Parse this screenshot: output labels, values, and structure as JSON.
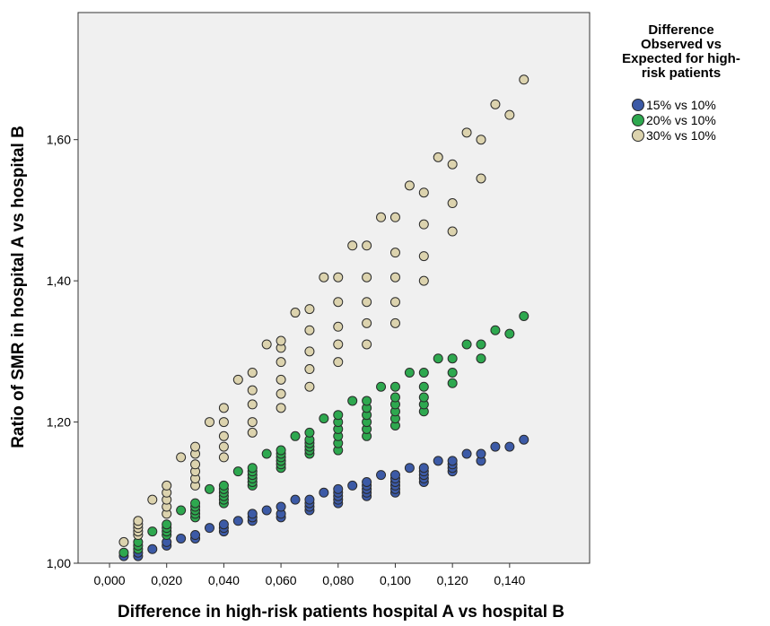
{
  "chart_data": {
    "type": "scatter",
    "title": "",
    "xlabel": "Difference in high-risk patients hospital A vs hospital B",
    "ylabel": "Ratio of SMR in hospital A vs hospital B",
    "xlim": [
      -0.011,
      0.168
    ],
    "ylim": [
      1.0,
      1.78
    ],
    "xticks": [
      0.0,
      0.02,
      0.04,
      0.06,
      0.08,
      0.1,
      0.12,
      0.14
    ],
    "xtick_labels": [
      "0,000",
      "0,020",
      "0,040",
      "0,060",
      "0,080",
      "0,100",
      "0,120",
      "0,140"
    ],
    "yticks": [
      1.0,
      1.2,
      1.4,
      1.6
    ],
    "ytick_labels": [
      "1,00",
      "1,20",
      "1,40",
      "1,60"
    ],
    "grid": false,
    "legend": {
      "title": [
        "Difference",
        "Observed vs",
        "Expected for high-",
        "risk patients"
      ],
      "placement": "right"
    },
    "series": [
      {
        "name": "15% vs 10%",
        "color": "#3c5aa6",
        "points": [
          [
            0.005,
            1.01
          ],
          [
            0.01,
            1.01
          ],
          [
            0.01,
            1.015
          ],
          [
            0.015,
            1.02
          ],
          [
            0.02,
            1.025
          ],
          [
            0.02,
            1.03
          ],
          [
            0.025,
            1.035
          ],
          [
            0.03,
            1.035
          ],
          [
            0.03,
            1.04
          ],
          [
            0.035,
            1.05
          ],
          [
            0.04,
            1.045
          ],
          [
            0.04,
            1.05
          ],
          [
            0.04,
            1.055
          ],
          [
            0.045,
            1.06
          ],
          [
            0.05,
            1.06
          ],
          [
            0.05,
            1.065
          ],
          [
            0.05,
            1.07
          ],
          [
            0.055,
            1.075
          ],
          [
            0.06,
            1.065
          ],
          [
            0.06,
            1.07
          ],
          [
            0.06,
            1.08
          ],
          [
            0.065,
            1.09
          ],
          [
            0.07,
            1.075
          ],
          [
            0.07,
            1.08
          ],
          [
            0.07,
            1.085
          ],
          [
            0.07,
            1.09
          ],
          [
            0.075,
            1.1
          ],
          [
            0.08,
            1.085
          ],
          [
            0.08,
            1.09
          ],
          [
            0.08,
            1.095
          ],
          [
            0.08,
            1.1
          ],
          [
            0.08,
            1.105
          ],
          [
            0.085,
            1.11
          ],
          [
            0.09,
            1.095
          ],
          [
            0.09,
            1.1
          ],
          [
            0.09,
            1.105
          ],
          [
            0.09,
            1.11
          ],
          [
            0.09,
            1.115
          ],
          [
            0.095,
            1.125
          ],
          [
            0.1,
            1.1
          ],
          [
            0.1,
            1.105
          ],
          [
            0.1,
            1.11
          ],
          [
            0.1,
            1.115
          ],
          [
            0.1,
            1.12
          ],
          [
            0.1,
            1.125
          ],
          [
            0.105,
            1.135
          ],
          [
            0.11,
            1.115
          ],
          [
            0.11,
            1.12
          ],
          [
            0.11,
            1.125
          ],
          [
            0.11,
            1.13
          ],
          [
            0.11,
            1.135
          ],
          [
            0.115,
            1.145
          ],
          [
            0.12,
            1.13
          ],
          [
            0.12,
            1.135
          ],
          [
            0.12,
            1.14
          ],
          [
            0.12,
            1.145
          ],
          [
            0.125,
            1.155
          ],
          [
            0.13,
            1.145
          ],
          [
            0.13,
            1.155
          ],
          [
            0.135,
            1.165
          ],
          [
            0.14,
            1.165
          ],
          [
            0.145,
            1.175
          ]
        ]
      },
      {
        "name": "20% vs 10%",
        "color": "#2ea84f",
        "points": [
          [
            0.005,
            1.015
          ],
          [
            0.01,
            1.02
          ],
          [
            0.01,
            1.025
          ],
          [
            0.01,
            1.03
          ],
          [
            0.015,
            1.045
          ],
          [
            0.02,
            1.04
          ],
          [
            0.02,
            1.045
          ],
          [
            0.02,
            1.05
          ],
          [
            0.02,
            1.055
          ],
          [
            0.025,
            1.075
          ],
          [
            0.03,
            1.065
          ],
          [
            0.03,
            1.07
          ],
          [
            0.03,
            1.075
          ],
          [
            0.03,
            1.08
          ],
          [
            0.03,
            1.085
          ],
          [
            0.035,
            1.105
          ],
          [
            0.04,
            1.085
          ],
          [
            0.04,
            1.09
          ],
          [
            0.04,
            1.095
          ],
          [
            0.04,
            1.1
          ],
          [
            0.04,
            1.105
          ],
          [
            0.04,
            1.11
          ],
          [
            0.045,
            1.13
          ],
          [
            0.05,
            1.11
          ],
          [
            0.05,
            1.115
          ],
          [
            0.05,
            1.12
          ],
          [
            0.05,
            1.125
          ],
          [
            0.05,
            1.13
          ],
          [
            0.05,
            1.135
          ],
          [
            0.055,
            1.155
          ],
          [
            0.06,
            1.135
          ],
          [
            0.06,
            1.14
          ],
          [
            0.06,
            1.145
          ],
          [
            0.06,
            1.15
          ],
          [
            0.06,
            1.155
          ],
          [
            0.06,
            1.16
          ],
          [
            0.065,
            1.18
          ],
          [
            0.07,
            1.155
          ],
          [
            0.07,
            1.16
          ],
          [
            0.07,
            1.165
          ],
          [
            0.07,
            1.17
          ],
          [
            0.07,
            1.175
          ],
          [
            0.07,
            1.185
          ],
          [
            0.075,
            1.205
          ],
          [
            0.08,
            1.16
          ],
          [
            0.08,
            1.17
          ],
          [
            0.08,
            1.18
          ],
          [
            0.08,
            1.19
          ],
          [
            0.08,
            1.2
          ],
          [
            0.08,
            1.21
          ],
          [
            0.085,
            1.23
          ],
          [
            0.09,
            1.18
          ],
          [
            0.09,
            1.19
          ],
          [
            0.09,
            1.2
          ],
          [
            0.09,
            1.21
          ],
          [
            0.09,
            1.22
          ],
          [
            0.09,
            1.23
          ],
          [
            0.095,
            1.25
          ],
          [
            0.1,
            1.195
          ],
          [
            0.1,
            1.205
          ],
          [
            0.1,
            1.215
          ],
          [
            0.1,
            1.225
          ],
          [
            0.1,
            1.235
          ],
          [
            0.1,
            1.25
          ],
          [
            0.105,
            1.27
          ],
          [
            0.11,
            1.215
          ],
          [
            0.11,
            1.225
          ],
          [
            0.11,
            1.235
          ],
          [
            0.11,
            1.25
          ],
          [
            0.11,
            1.27
          ],
          [
            0.115,
            1.29
          ],
          [
            0.12,
            1.255
          ],
          [
            0.12,
            1.27
          ],
          [
            0.12,
            1.29
          ],
          [
            0.125,
            1.31
          ],
          [
            0.13,
            1.29
          ],
          [
            0.13,
            1.31
          ],
          [
            0.135,
            1.33
          ],
          [
            0.14,
            1.325
          ],
          [
            0.145,
            1.35
          ]
        ]
      },
      {
        "name": "30% vs 10%",
        "color": "#dcd3ae",
        "points": [
          [
            0.005,
            1.03
          ],
          [
            0.01,
            1.04
          ],
          [
            0.01,
            1.045
          ],
          [
            0.01,
            1.05
          ],
          [
            0.01,
            1.055
          ],
          [
            0.01,
            1.06
          ],
          [
            0.015,
            1.09
          ],
          [
            0.02,
            1.07
          ],
          [
            0.02,
            1.08
          ],
          [
            0.02,
            1.09
          ],
          [
            0.02,
            1.1
          ],
          [
            0.02,
            1.11
          ],
          [
            0.025,
            1.15
          ],
          [
            0.03,
            1.11
          ],
          [
            0.03,
            1.12
          ],
          [
            0.03,
            1.13
          ],
          [
            0.03,
            1.14
          ],
          [
            0.03,
            1.155
          ],
          [
            0.03,
            1.165
          ],
          [
            0.035,
            1.2
          ],
          [
            0.04,
            1.15
          ],
          [
            0.04,
            1.165
          ],
          [
            0.04,
            1.18
          ],
          [
            0.04,
            1.2
          ],
          [
            0.04,
            1.22
          ],
          [
            0.045,
            1.26
          ],
          [
            0.05,
            1.185
          ],
          [
            0.05,
            1.2
          ],
          [
            0.05,
            1.225
          ],
          [
            0.05,
            1.245
          ],
          [
            0.05,
            1.27
          ],
          [
            0.055,
            1.31
          ],
          [
            0.06,
            1.22
          ],
          [
            0.06,
            1.24
          ],
          [
            0.06,
            1.26
          ],
          [
            0.06,
            1.285
          ],
          [
            0.06,
            1.305
          ],
          [
            0.06,
            1.315
          ],
          [
            0.065,
            1.355
          ],
          [
            0.07,
            1.25
          ],
          [
            0.07,
            1.275
          ],
          [
            0.07,
            1.3
          ],
          [
            0.07,
            1.33
          ],
          [
            0.07,
            1.36
          ],
          [
            0.075,
            1.405
          ],
          [
            0.08,
            1.285
          ],
          [
            0.08,
            1.31
          ],
          [
            0.08,
            1.335
          ],
          [
            0.08,
            1.37
          ],
          [
            0.08,
            1.405
          ],
          [
            0.085,
            1.45
          ],
          [
            0.09,
            1.31
          ],
          [
            0.09,
            1.34
          ],
          [
            0.09,
            1.37
          ],
          [
            0.09,
            1.405
          ],
          [
            0.09,
            1.45
          ],
          [
            0.095,
            1.49
          ],
          [
            0.1,
            1.34
          ],
          [
            0.1,
            1.37
          ],
          [
            0.1,
            1.405
          ],
          [
            0.1,
            1.44
          ],
          [
            0.1,
            1.49
          ],
          [
            0.105,
            1.535
          ],
          [
            0.11,
            1.4
          ],
          [
            0.11,
            1.435
          ],
          [
            0.11,
            1.48
          ],
          [
            0.11,
            1.525
          ],
          [
            0.115,
            1.575
          ],
          [
            0.12,
            1.47
          ],
          [
            0.12,
            1.51
          ],
          [
            0.12,
            1.565
          ],
          [
            0.125,
            1.61
          ],
          [
            0.13,
            1.545
          ],
          [
            0.13,
            1.6
          ],
          [
            0.135,
            1.65
          ],
          [
            0.14,
            1.635
          ],
          [
            0.145,
            1.685
          ]
        ]
      }
    ]
  }
}
